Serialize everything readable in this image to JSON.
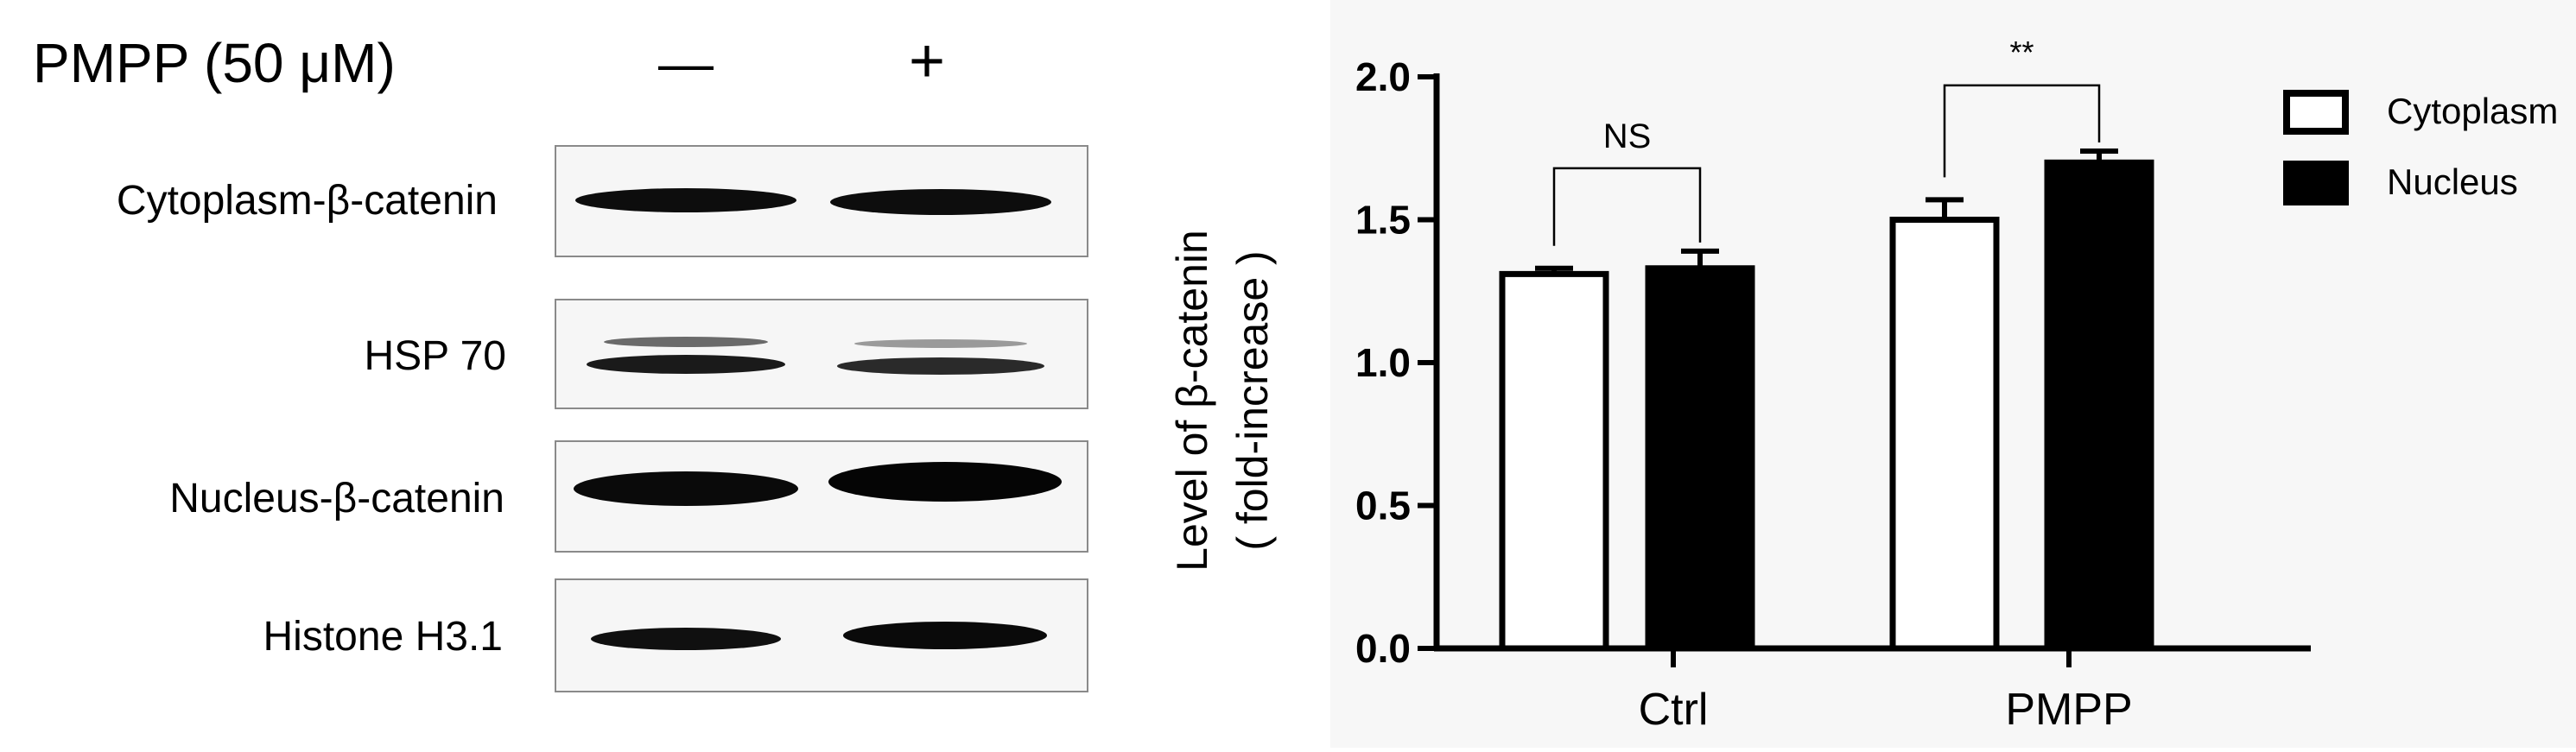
{
  "blot": {
    "treatment_label": "PMPP (50 μM)",
    "lane_signs": [
      "—",
      "+"
    ],
    "rows": [
      {
        "label": "Cytoplasm-β-catenin"
      },
      {
        "label": "HSP 70"
      },
      {
        "label": "Nucleus-β-catenin"
      },
      {
        "label": "Histone H3.1"
      }
    ]
  },
  "chart_data": {
    "type": "bar",
    "categories": [
      "Ctrl",
      "PMPP"
    ],
    "series": [
      {
        "name": "Cytoplasm",
        "values": [
          1.31,
          1.5
        ],
        "errors": [
          0.02,
          0.07
        ],
        "fill": "#ffffff"
      },
      {
        "name": "Nucleus",
        "values": [
          1.33,
          1.7
        ],
        "errors": [
          0.06,
          0.04
        ],
        "fill": "#000000"
      }
    ],
    "ylabel_line1": "Level of  β-catenin",
    "ylabel_line2": "( fold-increase )",
    "ylim": [
      0,
      2.0
    ],
    "yticks": [
      "0.0",
      "0.5",
      "1.0",
      "1.5",
      "2.0"
    ],
    "significance": [
      "NS",
      "**"
    ],
    "legend_position": "top-right",
    "grid": false
  }
}
